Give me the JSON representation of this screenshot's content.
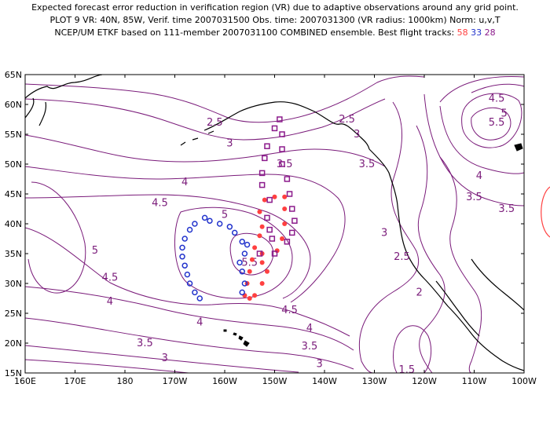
{
  "title": {
    "line1": "Expected forecast error reduction in verification region (VR) due to adaptive observations around any grid point.",
    "line2": "PLOT 9 VR: 40N, 85W, Verif. time 2007031500 Obs. time: 2007031300 (VR radius: 1000km) Norm: u,v,T",
    "line3_prefix": "NCEP/UM ETKF based on 111-member 2007031100 COMBINED ensemble.  Best flight tracks:",
    "flights": [
      {
        "id": "58",
        "color": "#ff4040"
      },
      {
        "id": "33",
        "color": "#2233cc"
      },
      {
        "id": "28",
        "color": "#8b1a8b"
      }
    ]
  },
  "map": {
    "lon_labels": [
      "160E",
      "170E",
      "180",
      "170W",
      "160W",
      "150W",
      "140W",
      "130W",
      "120W",
      "110W",
      "100W"
    ],
    "lat_labels": [
      "65N",
      "60N",
      "55N",
      "50N",
      "45N",
      "40N",
      "35N",
      "30N",
      "25N",
      "20N",
      "15N"
    ],
    "contour_color": "#7a1b7a",
    "contour_labels": [
      {
        "text": "2.5",
        "lon": -162,
        "lat": 57
      },
      {
        "text": "3",
        "lon": -159,
        "lat": 53.5
      },
      {
        "text": "4",
        "lon": -168,
        "lat": 47
      },
      {
        "text": "4.5",
        "lon": -173,
        "lat": 43.5
      },
      {
        "text": "5",
        "lon": -160,
        "lat": 41.5
      },
      {
        "text": "5",
        "lon": -186,
        "lat": 35.5
      },
      {
        "text": "4.5",
        "lon": -183,
        "lat": 31
      },
      {
        "text": "4",
        "lon": -183,
        "lat": 27
      },
      {
        "text": "4",
        "lon": -165,
        "lat": 23.5
      },
      {
        "text": "3.5",
        "lon": -176,
        "lat": 20
      },
      {
        "text": "3",
        "lon": -172,
        "lat": 17.5
      },
      {
        "text": "5.5",
        "lon": -155,
        "lat": 33.5
      },
      {
        "text": "4.5",
        "lon": -147,
        "lat": 25.5
      },
      {
        "text": "4",
        "lon": -143,
        "lat": 22.5
      },
      {
        "text": "3.5",
        "lon": -143,
        "lat": 19.5
      },
      {
        "text": "3",
        "lon": -141,
        "lat": 16.5
      },
      {
        "text": "3.5",
        "lon": -148,
        "lat": 50
      },
      {
        "text": "2.5",
        "lon": -135.5,
        "lat": 57.5
      },
      {
        "text": "3",
        "lon": -133.5,
        "lat": 55
      },
      {
        "text": "3.5",
        "lon": -131.5,
        "lat": 50
      },
      {
        "text": "3",
        "lon": -128,
        "lat": 38.5
      },
      {
        "text": "2.5",
        "lon": -124.5,
        "lat": 34.5
      },
      {
        "text": "2",
        "lon": -121,
        "lat": 28.5
      },
      {
        "text": "1.5",
        "lon": -123.5,
        "lat": 15.5
      },
      {
        "text": "4.5",
        "lon": -105.5,
        "lat": 61
      },
      {
        "text": "5",
        "lon": -104,
        "lat": 58.5
      },
      {
        "text": "5.5",
        "lon": -105.5,
        "lat": 57
      },
      {
        "text": "4",
        "lon": -109,
        "lat": 48
      },
      {
        "text": "3.5",
        "lon": -110,
        "lat": 44.5
      },
      {
        "text": "3.5",
        "lon": -103.5,
        "lat": 42.5
      }
    ],
    "flight_tracks": [
      {
        "id": "58",
        "color": "#ff4040",
        "marker": "dot",
        "points": [
          [
            -152,
            44
          ],
          [
            -150,
            44.5
          ],
          [
            -148,
            44.5
          ],
          [
            -153,
            42
          ],
          [
            -148,
            42.5
          ],
          [
            -152.5,
            39.5
          ],
          [
            -148,
            40
          ],
          [
            -153,
            38
          ],
          [
            -148.5,
            37.5
          ],
          [
            -154,
            36
          ],
          [
            -149.5,
            35.5
          ],
          [
            -152.5,
            35
          ],
          [
            -154.5,
            34
          ],
          [
            -152.5,
            33.5
          ],
          [
            -155,
            32
          ],
          [
            -151.5,
            32
          ],
          [
            -155.5,
            30
          ],
          [
            -152.5,
            30
          ],
          [
            -156,
            28
          ],
          [
            -154,
            28
          ],
          [
            -155,
            27.5
          ]
        ]
      },
      {
        "id": "33",
        "color": "#2233cc",
        "marker": "ring",
        "points": [
          [
            -164,
            41
          ],
          [
            -163,
            40.5
          ],
          [
            -161,
            40
          ],
          [
            -159,
            39.5
          ],
          [
            -158,
            38.5
          ],
          [
            -156.5,
            37
          ],
          [
            -166,
            40
          ],
          [
            -167,
            39
          ],
          [
            -168,
            37.5
          ],
          [
            -168.5,
            36
          ],
          [
            -168.5,
            34.5
          ],
          [
            -168,
            33
          ],
          [
            -167.5,
            31.5
          ],
          [
            -167,
            30
          ],
          [
            -166,
            28.5
          ],
          [
            -165,
            27.5
          ],
          [
            -156,
            35
          ],
          [
            -157,
            33.5
          ],
          [
            -156.5,
            32
          ],
          [
            -156,
            30
          ],
          [
            -156.5,
            28.5
          ],
          [
            -155.5,
            36.5
          ]
        ]
      },
      {
        "id": "28",
        "color": "#8b1a8b",
        "marker": "square",
        "points": [
          [
            -149,
            57.5
          ],
          [
            -150,
            56
          ],
          [
            -148.5,
            55
          ],
          [
            -151.5,
            53
          ],
          [
            -148.5,
            52.5
          ],
          [
            -152,
            51
          ],
          [
            -148.5,
            50
          ],
          [
            -152.5,
            48.5
          ],
          [
            -147.5,
            47.5
          ],
          [
            -152.5,
            46.5
          ],
          [
            -147,
            45
          ],
          [
            -151,
            44
          ],
          [
            -146.5,
            42.5
          ],
          [
            -151.5,
            41
          ],
          [
            -146,
            40.5
          ],
          [
            -151,
            39
          ],
          [
            -146.5,
            38.5
          ],
          [
            -150.5,
            37.5
          ],
          [
            -147.5,
            37
          ],
          [
            -153,
            35
          ],
          [
            -150,
            35
          ]
        ]
      }
    ]
  }
}
